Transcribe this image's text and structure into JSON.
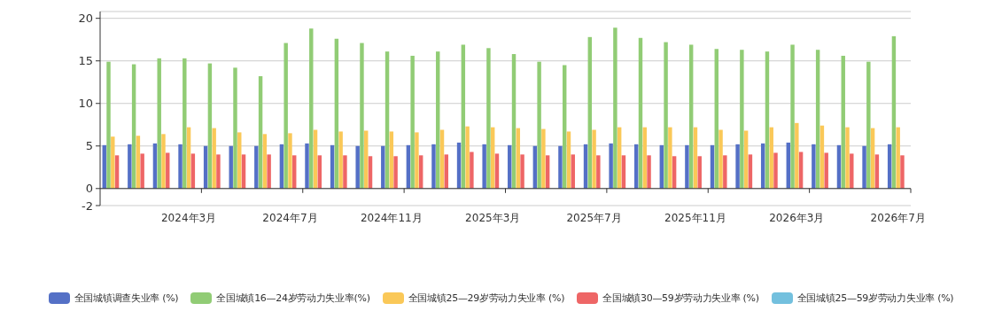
{
  "chart_data": {
    "type": "bar",
    "categories": [
      null,
      null,
      null,
      "2024年3月",
      null,
      null,
      null,
      "2024年7月",
      null,
      null,
      null,
      "2024年11月",
      null,
      null,
      null,
      "2025年3月",
      null,
      null,
      null,
      "2025年7月",
      null,
      null,
      null,
      "2025年11月",
      null,
      null,
      null,
      "2026年3月",
      null,
      null,
      null,
      "2026年7月"
    ],
    "series": [
      {
        "name": "全国城镇调查失业率 (%)",
        "color": "#5470c6",
        "values": [
          5.1,
          5.2,
          5.3,
          5.2,
          5.0,
          5.0,
          5.0,
          5.2,
          5.3,
          5.1,
          5.0,
          5.0,
          5.1,
          5.2,
          5.4,
          5.2,
          5.1,
          5.0,
          5.0,
          5.2,
          5.3,
          5.2,
          5.1,
          5.1,
          5.1,
          5.2,
          5.3,
          5.4,
          5.2,
          5.1,
          5.0,
          5.2
        ]
      },
      {
        "name": "全国城镇16—24岁劳动力失业率(%)",
        "color": "#91cc75",
        "values": [
          14.9,
          14.6,
          15.3,
          15.3,
          14.7,
          14.2,
          13.2,
          17.1,
          18.8,
          17.6,
          17.1,
          16.1,
          15.6,
          16.1,
          16.9,
          16.5,
          15.8,
          14.9,
          14.5,
          17.8,
          18.9,
          17.7,
          17.2,
          16.9,
          16.4,
          16.3,
          16.1,
          16.9,
          16.3,
          15.6,
          14.9,
          17.9
        ]
      },
      {
        "name": "全国城镇25—29岁劳动力失业率 (%)",
        "color": "#fac858",
        "values": [
          6.1,
          6.2,
          6.4,
          7.2,
          7.1,
          6.6,
          6.4,
          6.5,
          6.9,
          6.7,
          6.8,
          6.7,
          6.6,
          6.9,
          7.3,
          7.2,
          7.1,
          7.0,
          6.7,
          6.9,
          7.2,
          7.2,
          7.2,
          7.2,
          6.9,
          6.8,
          7.2,
          7.7,
          7.4,
          7.2,
          7.1,
          7.2
        ]
      },
      {
        "name": "全国城镇30—59岁劳动力失业率 (%)",
        "color": "#ee6666",
        "values": [
          3.9,
          4.1,
          4.2,
          4.1,
          4.0,
          4.0,
          4.0,
          3.9,
          3.9,
          3.9,
          3.8,
          3.8,
          3.9,
          4.0,
          4.3,
          4.1,
          4.0,
          3.9,
          4.0,
          3.9,
          3.9,
          3.9,
          3.8,
          3.8,
          3.9,
          4.0,
          4.2,
          4.3,
          4.2,
          4.1,
          4.0,
          3.9
        ]
      },
      {
        "name": "全国城镇25—59岁劳动力失业率 (%)",
        "color": "#73c0de",
        "values": [
          null,
          null,
          null,
          null,
          null,
          null,
          null,
          null,
          null,
          null,
          null,
          null,
          null,
          null,
          null,
          null,
          null,
          null,
          null,
          null,
          null,
          null,
          null,
          null,
          null,
          null,
          null,
          null,
          null,
          null,
          null,
          null
        ]
      }
    ],
    "ylim": [
      -2,
      20.8
    ],
    "yticks": [
      -2,
      0,
      5,
      10,
      15,
      20
    ],
    "grid": "y",
    "legend": "bottom"
  }
}
